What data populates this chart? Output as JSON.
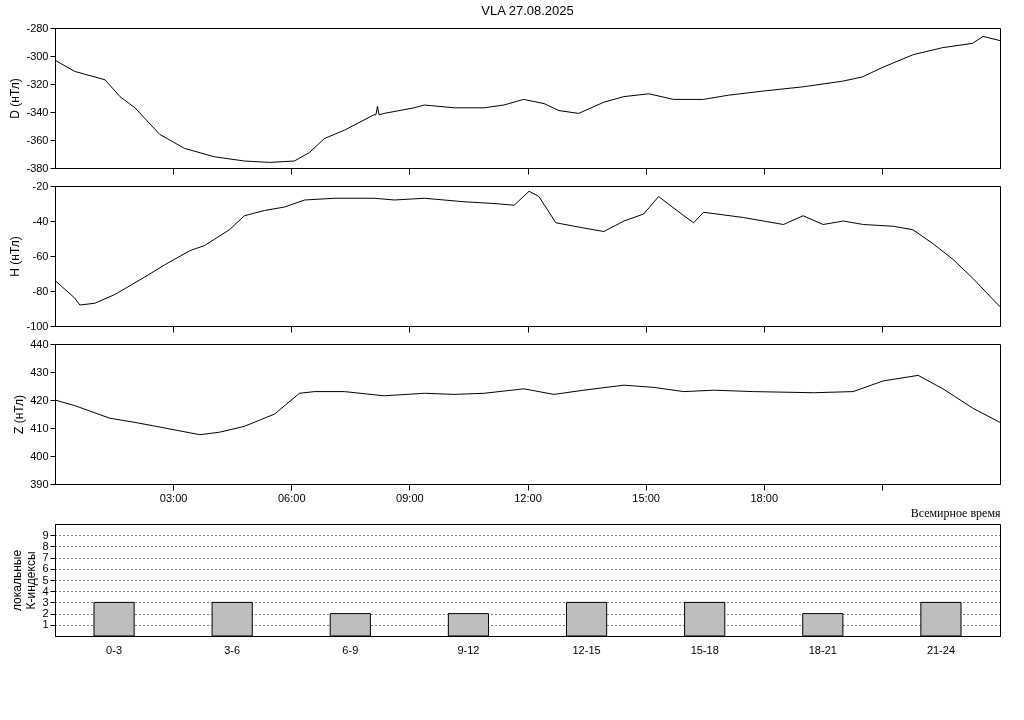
{
  "chart_data": [
    {
      "type": "line",
      "title": "VLA   27.08.2025",
      "ylabel": "D (нТл)",
      "xlim": [
        0,
        24
      ],
      "ylim": [
        -380,
        -280
      ],
      "yticks": [
        -380,
        -360,
        -340,
        -320,
        -300,
        -280
      ],
      "xticks": [
        {
          "value": 3,
          "label": null
        },
        {
          "value": 6,
          "label": null
        },
        {
          "value": 9,
          "label": null
        },
        {
          "value": 12,
          "label": null
        },
        {
          "value": 15,
          "label": null
        },
        {
          "value": 18,
          "label": null
        },
        {
          "value": 21,
          "label": null
        }
      ],
      "tick_labels": "y",
      "grid": false,
      "series": [
        {
          "color": "#000000",
          "x": [
            0,
            0.5,
            1.27,
            1.65,
            2.03,
            2.66,
            3.29,
            4.05,
            4.81,
            5.45,
            6.08,
            6.46,
            6.84,
            7.35,
            8.1,
            8.15,
            8.19,
            8.23,
            8.36,
            9.12,
            9.38,
            10.14,
            10.9,
            11.4,
            11.9,
            12.42,
            12.8,
            13.3,
            13.94,
            14.45,
            15.08,
            15.71,
            16.47,
            17.1,
            18.0,
            19.0,
            20.0,
            20.5,
            21.03,
            21.8,
            22.55,
            23.3,
            23.57,
            24
          ],
          "values": [
            -303,
            -311,
            -317,
            -329,
            -337,
            -356,
            -366,
            -372,
            -375,
            -376,
            -375,
            -369,
            -359,
            -353,
            -342,
            -342,
            -336,
            -342,
            -341,
            -337,
            -335,
            -337,
            -337,
            -335,
            -331,
            -334,
            -339,
            -341,
            -333,
            -329,
            -327,
            -331,
            -331,
            -328,
            -325,
            -322,
            -318,
            -315,
            -308,
            -299,
            -294,
            -291,
            -286,
            -289
          ]
        }
      ]
    },
    {
      "type": "line",
      "ylabel": "H (нТл)",
      "xlim": [
        0,
        24
      ],
      "ylim": [
        -100,
        -20
      ],
      "yticks": [
        -100,
        -80,
        -60,
        -40,
        -20
      ],
      "xticks": [
        {
          "value": 3,
          "label": null
        },
        {
          "value": 6,
          "label": null
        },
        {
          "value": 9,
          "label": null
        },
        {
          "value": 12,
          "label": null
        },
        {
          "value": 15,
          "label": null
        },
        {
          "value": 18,
          "label": null
        },
        {
          "value": 21,
          "label": null
        }
      ],
      "tick_labels": "y",
      "grid": false,
      "series": [
        {
          "color": "#000000",
          "x": [
            0,
            0.5,
            0.63,
            1.01,
            1.52,
            2.28,
            2.79,
            3.42,
            3.8,
            4.43,
            4.81,
            5.32,
            5.83,
            6.34,
            7.1,
            8.11,
            8.62,
            9.38,
            10.39,
            11.15,
            11.66,
            12.04,
            12.29,
            12.72,
            13.43,
            13.94,
            14.45,
            14.95,
            15.33,
            15.97,
            16.22,
            16.47,
            17.48,
            18.5,
            19.0,
            19.51,
            20.02,
            20.53,
            21.29,
            21.79,
            22.3,
            22.81,
            23.32,
            24
          ],
          "values": [
            -74,
            -84,
            -88,
            -87,
            -82,
            -72,
            -65,
            -57,
            -54,
            -45,
            -37,
            -34,
            -32,
            -28,
            -27,
            -27,
            -28,
            -27,
            -29,
            -30,
            -31,
            -23,
            -26,
            -41,
            -44,
            -46,
            -40,
            -36,
            -26,
            -37,
            -41,
            -35,
            -38,
            -42,
            -37,
            -42,
            -40,
            -42,
            -43,
            -45,
            -53,
            -62,
            -73,
            -89
          ]
        }
      ]
    },
    {
      "type": "line",
      "ylabel": "Z (нТл)",
      "xlabel": "Всемирное время",
      "xlim": [
        0,
        24
      ],
      "ylim": [
        390,
        440
      ],
      "yticks": [
        390,
        400,
        410,
        420,
        430,
        440
      ],
      "xticks": [
        {
          "value": 3,
          "label": "03:00"
        },
        {
          "value": 6,
          "label": "06:00"
        },
        {
          "value": 9,
          "label": "09:00"
        },
        {
          "value": 12,
          "label": "12:00"
        },
        {
          "value": 15,
          "label": "15:00"
        },
        {
          "value": 18,
          "label": "18:00"
        },
        {
          "value": 21,
          "label": null
        }
      ],
      "grid": false,
      "series": [
        {
          "color": "#000000",
          "x": [
            0,
            0.5,
            1.39,
            2.03,
            2.79,
            3.68,
            4.18,
            4.81,
            5.58,
            6.21,
            6.59,
            7.35,
            8.36,
            9.38,
            10.14,
            10.9,
            11.91,
            12.67,
            13.43,
            14.45,
            15.21,
            15.97,
            16.73,
            17.74,
            19.26,
            20.27,
            21.03,
            21.92,
            22.55,
            23.32,
            24
          ],
          "values": [
            420,
            418,
            413.5,
            412,
            410,
            407.6,
            408.5,
            410.6,
            415,
            422.4,
            423,
            423,
            421.5,
            422.4,
            422,
            422.4,
            424,
            422,
            423.5,
            425.3,
            424.5,
            423,
            423.5,
            423,
            422.6,
            423,
            426.8,
            428.8,
            424,
            417,
            412
          ]
        }
      ]
    },
    {
      "type": "bar",
      "ylabel": "локальные К-индексы",
      "categories": [
        "0-3",
        "3-6",
        "6-9",
        "9-12",
        "12-15",
        "15-18",
        "18-21",
        "21-24"
      ],
      "ylim": [
        0,
        10
      ],
      "yticks": [
        1,
        2,
        3,
        4,
        5,
        6,
        7,
        8,
        9
      ],
      "grid": "y",
      "series": [
        {
          "color": "#bebebe",
          "values": [
            3,
            3,
            2,
            2,
            3,
            3,
            2,
            3
          ]
        }
      ]
    }
  ]
}
